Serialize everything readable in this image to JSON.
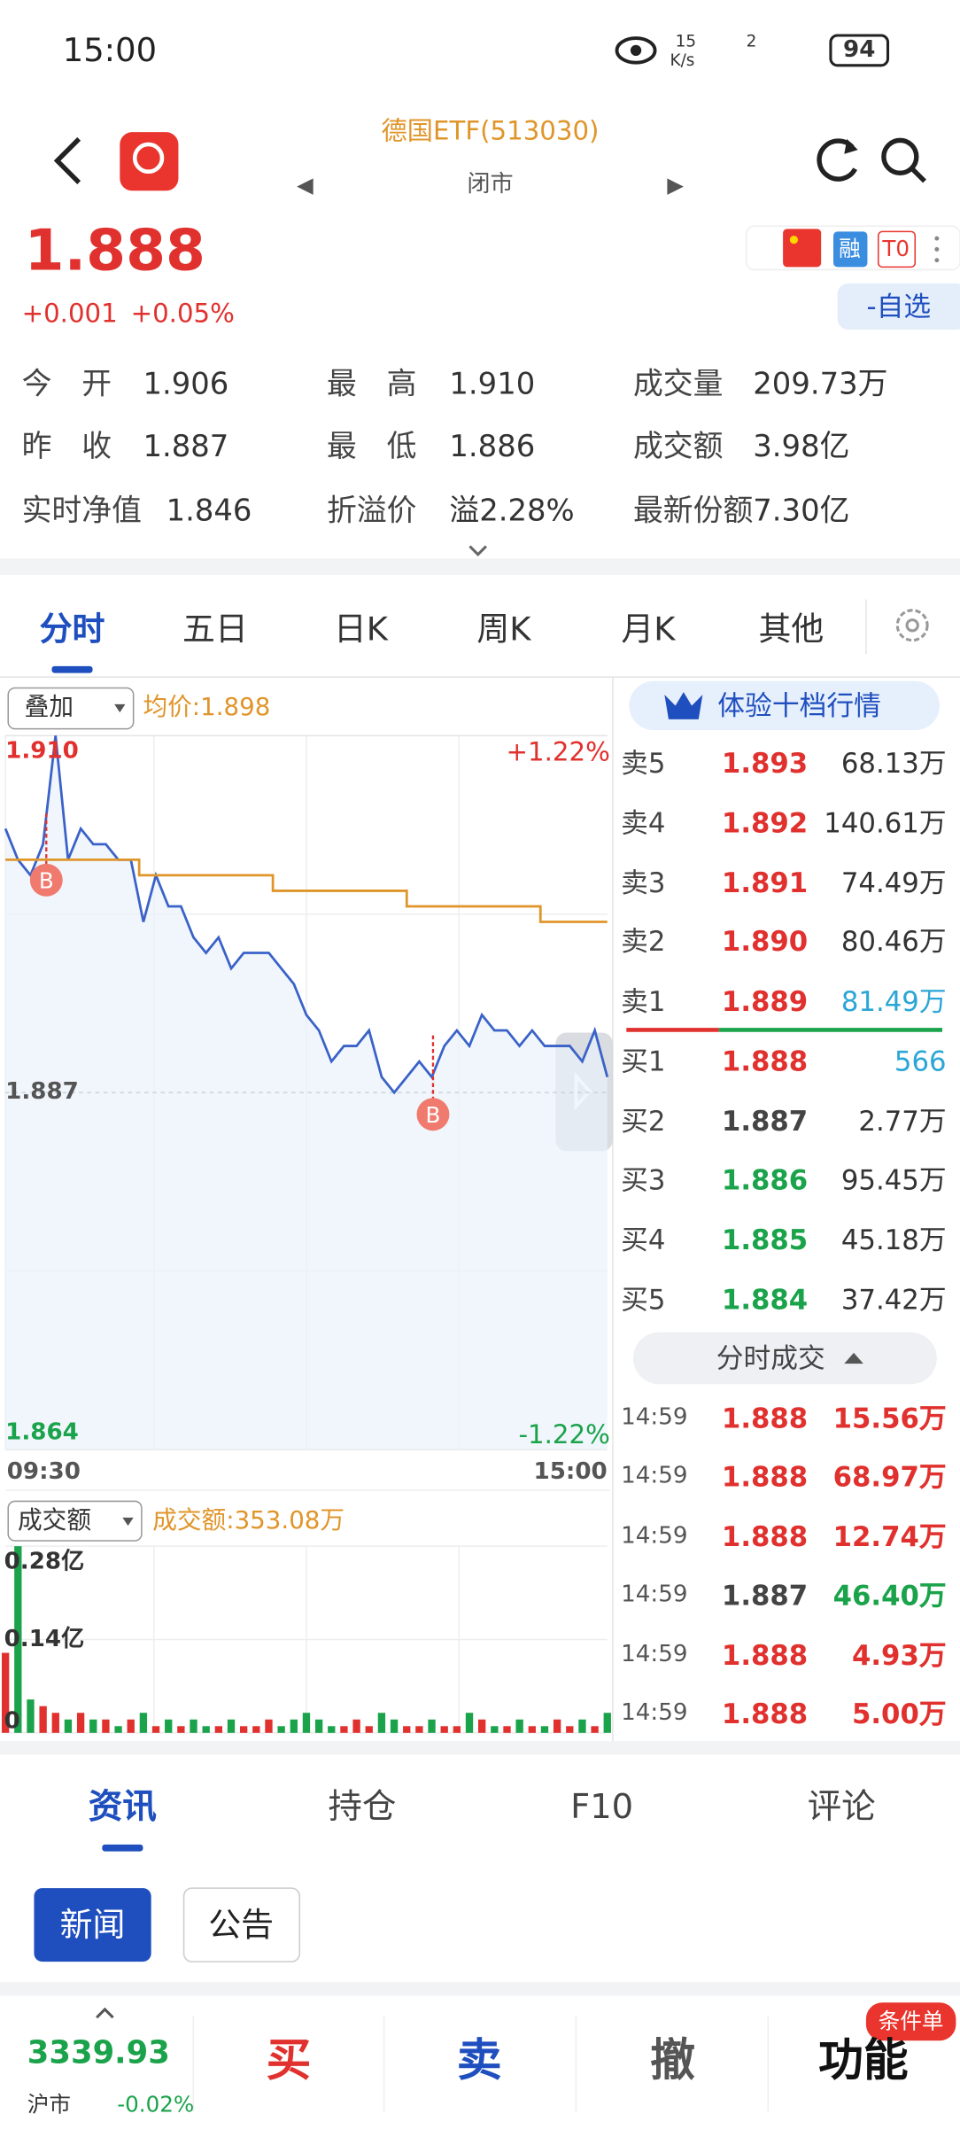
{
  "status": {
    "time": "15:00",
    "speed": "15",
    "speed_unit": "K/s",
    "signal": "2",
    "battery": "94"
  },
  "header": {
    "title": "德国ETF(513030)",
    "state": "闭市"
  },
  "quote": {
    "price": "1.888",
    "change": "+0.001",
    "change_pct": "+0.05%",
    "tags": [
      "融",
      "T0"
    ],
    "watch": "-自选"
  },
  "stats": [
    {
      "label": "今　开",
      "value": "1.906"
    },
    {
      "label": "最　高",
      "value": "1.910"
    },
    {
      "label": "成交量",
      "value": "209.73万"
    },
    {
      "label": "昨　收",
      "value": "1.887"
    },
    {
      "label": "最　低",
      "value": "1.886"
    },
    {
      "label": "成交额",
      "value": "3.98亿"
    },
    {
      "label": "实时净值",
      "value": "1.846"
    },
    {
      "label": "折溢价",
      "value": "溢2.28%"
    },
    {
      "label": "最新份额",
      "value": "7.30亿"
    }
  ],
  "tabs": [
    "分时",
    "五日",
    "日K",
    "周K",
    "月K",
    "其他"
  ],
  "chart": {
    "overlay": "叠加",
    "avg_label": "均价:1.898",
    "pct_high": "+1.22%",
    "pct_low": "-1.22%",
    "x_start": "09:30",
    "x_end": "15:00",
    "buy_markers": [
      "B",
      "B"
    ],
    "ylim": [
      1.864,
      1.91
    ],
    "yticks": [
      {
        "value": 1.91,
        "label": "1.910"
      },
      {
        "value": 1.887,
        "label": "1.887"
      },
      {
        "value": 1.864,
        "label": "1.864"
      }
    ],
    "price_color": "#3a62c8",
    "avg_color": "#e0952a",
    "up_color": "#e0312e",
    "down_color": "#1aa34a",
    "price_values": [
      1.904,
      1.902,
      1.901,
      1.903,
      1.91,
      1.902,
      1.904,
      1.903,
      1.903,
      1.902,
      1.902,
      1.898,
      1.901,
      1.899,
      1.899,
      1.897,
      1.896,
      1.897,
      1.895,
      1.896,
      1.896,
      1.896,
      1.895,
      1.894,
      1.892,
      1.891,
      1.889,
      1.89,
      1.89,
      1.891,
      1.888,
      1.887,
      1.888,
      1.889,
      1.888,
      1.89,
      1.891,
      1.89,
      1.892,
      1.891,
      1.891,
      1.89,
      1.891,
      1.89,
      1.89,
      1.89,
      1.889,
      1.891,
      1.888
    ],
    "avg_values": [
      1.902,
      1.902,
      1.901,
      1.901,
      1.9,
      1.9,
      1.899,
      1.899,
      1.898
    ],
    "volume_select": "成交额",
    "volume_label": "成交额:353.08万",
    "volume_ylim": [
      0,
      0.28
    ],
    "volume_ticks": [
      {
        "value": 0.28,
        "label": "0.28亿"
      },
      {
        "value": 0.14,
        "label": "0.14亿"
      },
      0
    ],
    "volume_values": [
      0.12,
      0.28,
      0.05,
      0.04,
      0.03,
      0.02,
      0.03,
      0.02,
      0.02,
      0.01,
      0.02,
      0.03,
      0.01,
      0.02,
      0.01,
      0.02,
      0.01,
      0.01,
      0.02,
      0.01,
      0.01,
      0.02,
      0.01,
      0.02,
      0.03,
      0.02,
      0.01,
      0.01,
      0.02,
      0.01,
      0.03,
      0.02,
      0.01,
      0.01,
      0.02,
      0.01,
      0.01,
      0.03,
      0.02,
      0.01,
      0.01,
      0.02,
      0.01,
      0.01,
      0.02,
      0.01,
      0.02,
      0.01,
      0.03
    ]
  },
  "orderbook": {
    "button": "体验十档行情",
    "asks": [
      {
        "label": "卖5",
        "price": "1.893",
        "volume": "68.13万"
      },
      {
        "label": "卖4",
        "price": "1.892",
        "volume": "140.61万"
      },
      {
        "label": "卖3",
        "price": "1.891",
        "volume": "74.49万"
      },
      {
        "label": "卖2",
        "price": "1.890",
        "volume": "80.46万"
      },
      {
        "label": "卖1",
        "price": "1.889",
        "volume": "81.49万"
      }
    ],
    "bids": [
      {
        "label": "买1",
        "price": "1.888",
        "volume": "566"
      },
      {
        "label": "买2",
        "price": "1.887",
        "volume": "2.77万"
      },
      {
        "label": "买3",
        "price": "1.886",
        "volume": "95.45万"
      },
      {
        "label": "买4",
        "price": "1.885",
        "volume": "45.18万"
      },
      {
        "label": "买5",
        "price": "1.884",
        "volume": "37.42万"
      }
    ],
    "trades_title": "分时成交",
    "trades": [
      {
        "time": "14:59",
        "price": "1.888",
        "volume": "15.56万"
      },
      {
        "time": "14:59",
        "price": "1.888",
        "volume": "68.97万"
      },
      {
        "time": "14:59",
        "price": "1.888",
        "volume": "12.74万"
      },
      {
        "time": "14:59",
        "price": "1.887",
        "volume": "46.40万"
      },
      {
        "time": "14:59",
        "price": "1.888",
        "volume": "4.93万"
      },
      {
        "time": "14:59",
        "price": "1.888",
        "volume": "5.00万"
      }
    ]
  },
  "info_tabs": [
    "资讯",
    "持仓",
    "F10",
    "评论"
  ],
  "info_buttons": [
    "新闻",
    "公告"
  ],
  "footer": {
    "index_value": "3339.93",
    "index_name": "沪市",
    "index_change": "-0.02%",
    "actions": [
      "买",
      "卖",
      "撤",
      "功能"
    ],
    "badge": "条件单"
  }
}
